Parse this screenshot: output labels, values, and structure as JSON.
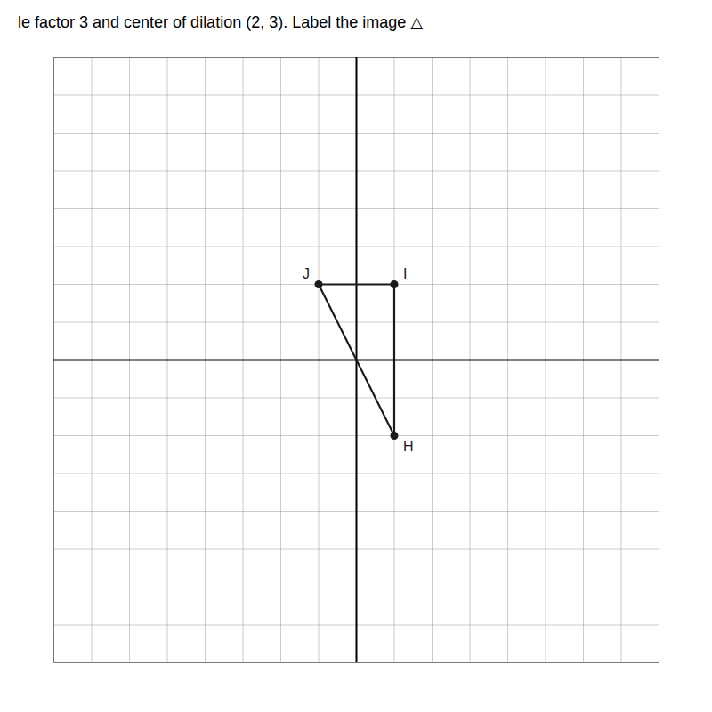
{
  "chart_data": {
    "type": "line",
    "title": "le factor 3 and center of dilation (2, 3). Label the image △",
    "x": [
      1,
      1,
      -1,
      1
    ],
    "values": [
      -2,
      2,
      2,
      -2
    ],
    "color": "#1a1a1a",
    "marker": "circle",
    "xlim": [
      -8,
      8
    ],
    "ylim": [
      -8,
      8
    ],
    "xticks": [
      -8,
      -7,
      -6,
      -5,
      -4,
      -3,
      -2,
      -1,
      0,
      1,
      2,
      3,
      4,
      5,
      6,
      7,
      8
    ],
    "yticks": [
      -8,
      -7,
      -6,
      -5,
      -4,
      -3,
      -2,
      -1,
      0,
      1,
      2,
      3,
      4,
      5,
      6,
      7,
      8
    ],
    "grid": true,
    "tick_labels": false,
    "annotations": [
      {
        "text": "H",
        "x": 1,
        "y": -2
      },
      {
        "text": "I",
        "x": 1,
        "y": 2
      },
      {
        "text": "J",
        "x": -1,
        "y": 2
      }
    ]
  }
}
